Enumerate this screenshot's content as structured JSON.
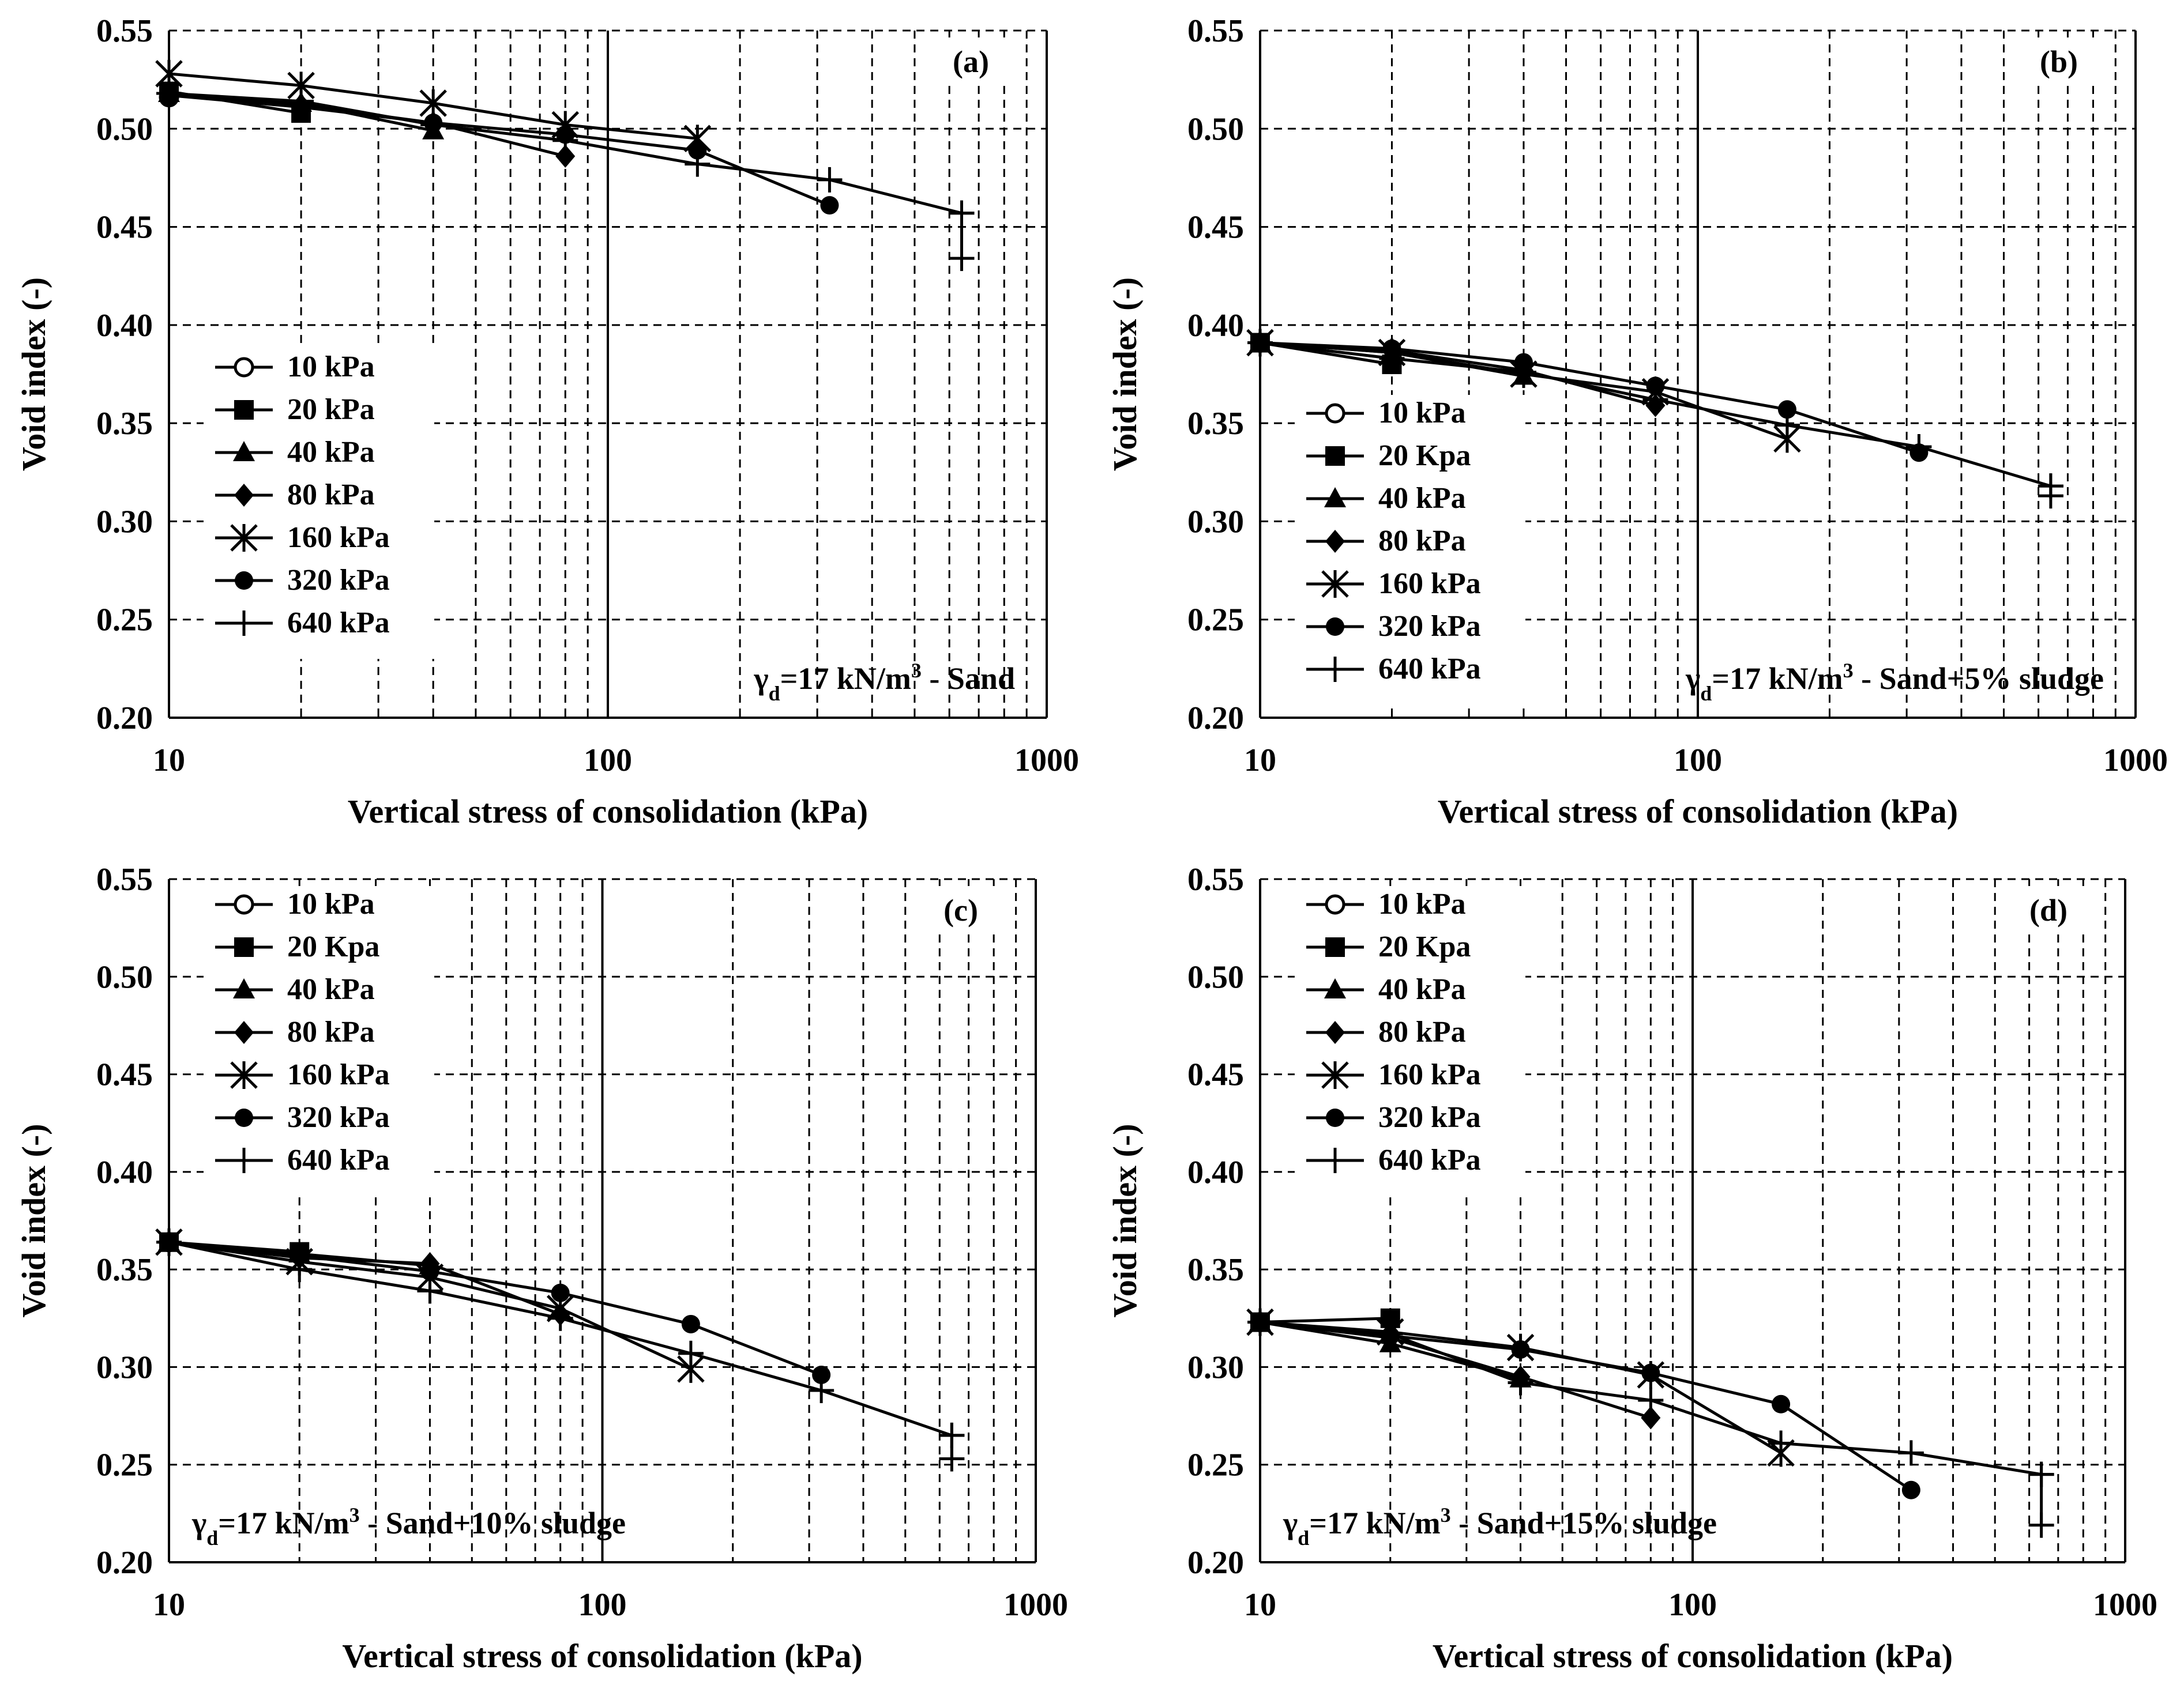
{
  "figure": {
    "series_names": [
      "10 kPa",
      "20 kPa",
      "40 kPa",
      "80 kPa",
      "160 kPa",
      "320 kPa",
      "640 kPa"
    ],
    "markers": [
      "open-circle",
      "filled-square",
      "filled-triangle",
      "filled-diamond",
      "asterisk",
      "filled-circle",
      "plus"
    ]
  },
  "chart_data": [
    {
      "type": "line",
      "panel_label": "(a)",
      "annotation": {
        "gamma": "γ",
        "sub": "d",
        "mid": "=17 kN/m",
        "sup": "3",
        "rest": " - Sand"
      },
      "annotation_position": "bottom-right",
      "legend_position": "bottom-left",
      "legend": [
        "10 kPa",
        "20 kPa",
        "40 kPa",
        "80 kPa",
        "160 kPa",
        "320 kPa",
        "640 kPa"
      ],
      "xlabel": "Vertical stress of consolidation (kPa)",
      "ylabel": "Void index (-)",
      "xscale": "log",
      "xlim": [
        10,
        1000
      ],
      "ylim": [
        0.2,
        0.55
      ],
      "xticks": [
        "10",
        "100",
        "1000"
      ],
      "yticks": [
        "0.20",
        "0.25",
        "0.30",
        "0.35",
        "0.40",
        "0.45",
        "0.50",
        "0.55"
      ],
      "grid": true,
      "series": [
        {
          "name": "10 kPa",
          "marker": "open-circle",
          "x": [
            10
          ],
          "y": [
            0.516
          ]
        },
        {
          "name": "20 kPa",
          "marker": "filled-square",
          "x": [
            10,
            20
          ],
          "y": [
            0.519,
            0.508
          ]
        },
        {
          "name": "40 kPa",
          "marker": "filled-triangle",
          "x": [
            10,
            20,
            40
          ],
          "y": [
            0.518,
            0.513,
            0.499
          ]
        },
        {
          "name": "80 kPa",
          "marker": "filled-diamond",
          "x": [
            10,
            20,
            40,
            80
          ],
          "y": [
            0.517,
            0.512,
            0.503,
            0.486
          ]
        },
        {
          "name": "160 kPa",
          "marker": "asterisk",
          "x": [
            10,
            20,
            40,
            80,
            160
          ],
          "y": [
            0.528,
            0.522,
            0.513,
            0.502,
            0.495
          ]
        },
        {
          "name": "320 kPa",
          "marker": "filled-circle",
          "x": [
            10,
            20,
            40,
            80,
            160,
            320
          ],
          "y": [
            0.517,
            0.511,
            0.503,
            0.497,
            0.489,
            0.461
          ]
        },
        {
          "name": "640 kPa",
          "marker": "plus",
          "x": [
            10,
            20,
            40,
            80,
            160,
            320,
            640
          ],
          "y": [
            0.518,
            0.514,
            0.502,
            0.494,
            0.482,
            0.474,
            0.457
          ]
        },
        {
          "name": "640 kPa",
          "marker": "plus",
          "x": [
            640,
            640
          ],
          "y": [
            0.457,
            0.434
          ]
        }
      ]
    },
    {
      "type": "line",
      "panel_label": "(b)",
      "annotation": {
        "gamma": "γ",
        "sub": "d",
        "mid": "=17 kN/m",
        "sup": "3",
        "rest": " - Sand+5% sludge"
      },
      "annotation_position": "bottom-right",
      "legend_position": "bottom-left",
      "legend": [
        "10 kPa",
        "20 Kpa",
        "40 kPa",
        "80 kPa",
        "160 kPa",
        "320 kPa",
        "640 kPa"
      ],
      "xlabel": "Vertical stress of consolidation (kPa)",
      "ylabel": "Void index (-)",
      "xscale": "log",
      "xlim": [
        10,
        1000
      ],
      "ylim": [
        0.2,
        0.55
      ],
      "xticks": [
        "10",
        "100",
        "1000"
      ],
      "yticks": [
        "0.20",
        "0.25",
        "0.30",
        "0.35",
        "0.40",
        "0.45",
        "0.50",
        "0.55"
      ],
      "grid": true,
      "series": [
        {
          "name": "10 kPa",
          "marker": "open-circle",
          "x": [
            10
          ],
          "y": [
            0.391
          ]
        },
        {
          "name": "20 Kpa",
          "marker": "filled-square",
          "x": [
            10,
            20
          ],
          "y": [
            0.391,
            0.38
          ]
        },
        {
          "name": "40 kPa",
          "marker": "filled-triangle",
          "x": [
            10,
            20,
            40
          ],
          "y": [
            0.391,
            0.386,
            0.374
          ]
        },
        {
          "name": "80 kPa",
          "marker": "filled-diamond",
          "x": [
            10,
            20,
            40,
            80
          ],
          "y": [
            0.391,
            0.387,
            0.377,
            0.359
          ]
        },
        {
          "name": "160 kPa",
          "marker": "asterisk",
          "x": [
            10,
            20,
            40,
            80,
            160
          ],
          "y": [
            0.391,
            0.386,
            0.375,
            0.366,
            0.342
          ]
        },
        {
          "name": "320 kPa",
          "marker": "filled-circle",
          "x": [
            10,
            20,
            40,
            80,
            160,
            320
          ],
          "y": [
            0.391,
            0.388,
            0.381,
            0.369,
            0.357,
            0.335
          ]
        },
        {
          "name": "640 kPa",
          "marker": "plus",
          "x": [
            10,
            20,
            40,
            80,
            160,
            320,
            640
          ],
          "y": [
            0.391,
            0.383,
            0.376,
            0.362,
            0.349,
            0.338,
            0.318
          ]
        },
        {
          "name": "640 kPa",
          "marker": "plus",
          "x": [
            640,
            640
          ],
          "y": [
            0.318,
            0.313
          ]
        }
      ]
    },
    {
      "type": "line",
      "panel_label": "(c)",
      "annotation": {
        "gamma": "γ",
        "sub": "d",
        "mid": "=17 kN/m",
        "sup": "3",
        "rest": " - Sand+10% sludge"
      },
      "annotation_position": "bottom-left",
      "legend_position": "top-left",
      "legend": [
        "10 kPa",
        "20 Kpa",
        "40 kPa",
        "80 kPa",
        "160 kPa",
        "320 kPa",
        "640 kPa"
      ],
      "xlabel": "Vertical stress of consolidation (kPa)",
      "ylabel": "Void index (-)",
      "xscale": "log",
      "xlim": [
        10,
        1000
      ],
      "ylim": [
        0.2,
        0.55
      ],
      "xticks": [
        "10",
        "100",
        "1000"
      ],
      "yticks": [
        "0.20",
        "0.25",
        "0.30",
        "0.35",
        "0.40",
        "0.45",
        "0.50",
        "0.55"
      ],
      "grid": true,
      "series": [
        {
          "name": "10 kPa",
          "marker": "open-circle",
          "x": [
            10
          ],
          "y": [
            0.364
          ]
        },
        {
          "name": "20 Kpa",
          "marker": "filled-square",
          "x": [
            10,
            20
          ],
          "y": [
            0.364,
            0.359
          ]
        },
        {
          "name": "40 kPa",
          "marker": "filled-triangle",
          "x": [
            10,
            20,
            40
          ],
          "y": [
            0.364,
            0.358,
            0.352
          ]
        },
        {
          "name": "80 kPa",
          "marker": "filled-diamond",
          "x": [
            10,
            20,
            40,
            80
          ],
          "y": [
            0.364,
            0.356,
            0.353,
            0.327
          ]
        },
        {
          "name": "160 kPa",
          "marker": "asterisk",
          "x": [
            10,
            20,
            40,
            80,
            160
          ],
          "y": [
            0.364,
            0.354,
            0.346,
            0.33,
            0.299
          ]
        },
        {
          "name": "320 kPa",
          "marker": "filled-circle",
          "x": [
            10,
            20,
            40,
            80,
            160,
            320
          ],
          "y": [
            0.364,
            0.357,
            0.349,
            0.338,
            0.322,
            0.296
          ]
        },
        {
          "name": "640 kPa",
          "marker": "plus",
          "x": [
            10,
            20,
            40,
            80,
            160,
            320,
            640
          ],
          "y": [
            0.364,
            0.35,
            0.339,
            0.325,
            0.307,
            0.288,
            0.265
          ]
        },
        {
          "name": "640 kPa",
          "marker": "plus",
          "x": [
            640,
            640
          ],
          "y": [
            0.265,
            0.253
          ]
        }
      ]
    },
    {
      "type": "line",
      "panel_label": "(d)",
      "annotation": {
        "gamma": "γ",
        "sub": "d",
        "mid": "=17 kN/m",
        "sup": "3",
        "rest": " - Sand+15% sludge"
      },
      "annotation_position": "bottom-left",
      "legend_position": "top-left",
      "legend": [
        "10 kPa",
        "20 Kpa",
        "40 kPa",
        "80 kPa",
        "160 kPa",
        "320 kPa",
        "640 kPa"
      ],
      "xlabel": "Vertical stress of consolidation (kPa)",
      "ylabel": "Void index (-)",
      "xscale": "log",
      "xlim": [
        10,
        1000
      ],
      "ylim": [
        0.2,
        0.55
      ],
      "xticks": [
        "10",
        "100",
        "1000"
      ],
      "yticks": [
        "0.20",
        "0.25",
        "0.30",
        "0.35",
        "0.40",
        "0.45",
        "0.50",
        "0.55"
      ],
      "grid": true,
      "series": [
        {
          "name": "10 kPa",
          "marker": "open-circle",
          "x": [
            10
          ],
          "y": [
            0.323
          ]
        },
        {
          "name": "20 Kpa",
          "marker": "filled-square",
          "x": [
            10,
            20
          ],
          "y": [
            0.323,
            0.325
          ]
        },
        {
          "name": "40 kPa",
          "marker": "filled-triangle",
          "x": [
            10,
            20,
            40
          ],
          "y": [
            0.323,
            0.312,
            0.294
          ]
        },
        {
          "name": "80 kPa",
          "marker": "filled-diamond",
          "x": [
            10,
            20,
            40,
            80
          ],
          "y": [
            0.323,
            0.315,
            0.295,
            0.274
          ]
        },
        {
          "name": "160 kPa",
          "marker": "asterisk",
          "x": [
            10,
            20,
            40,
            80,
            160
          ],
          "y": [
            0.323,
            0.318,
            0.31,
            0.296,
            0.256
          ]
        },
        {
          "name": "320 kPa",
          "marker": "filled-circle",
          "x": [
            10,
            20,
            40,
            80,
            160,
            320
          ],
          "y": [
            0.323,
            0.316,
            0.309,
            0.297,
            0.281,
            0.237
          ]
        },
        {
          "name": "640 kPa",
          "marker": "plus",
          "x": [
            10,
            20,
            40,
            80,
            160,
            320,
            640
          ],
          "y": [
            0.323,
            0.317,
            0.292,
            0.283,
            0.261,
            0.256,
            0.245
          ]
        },
        {
          "name": "640 kPa",
          "marker": "plus",
          "x": [
            640,
            640
          ],
          "y": [
            0.245,
            0.219
          ]
        }
      ]
    }
  ]
}
